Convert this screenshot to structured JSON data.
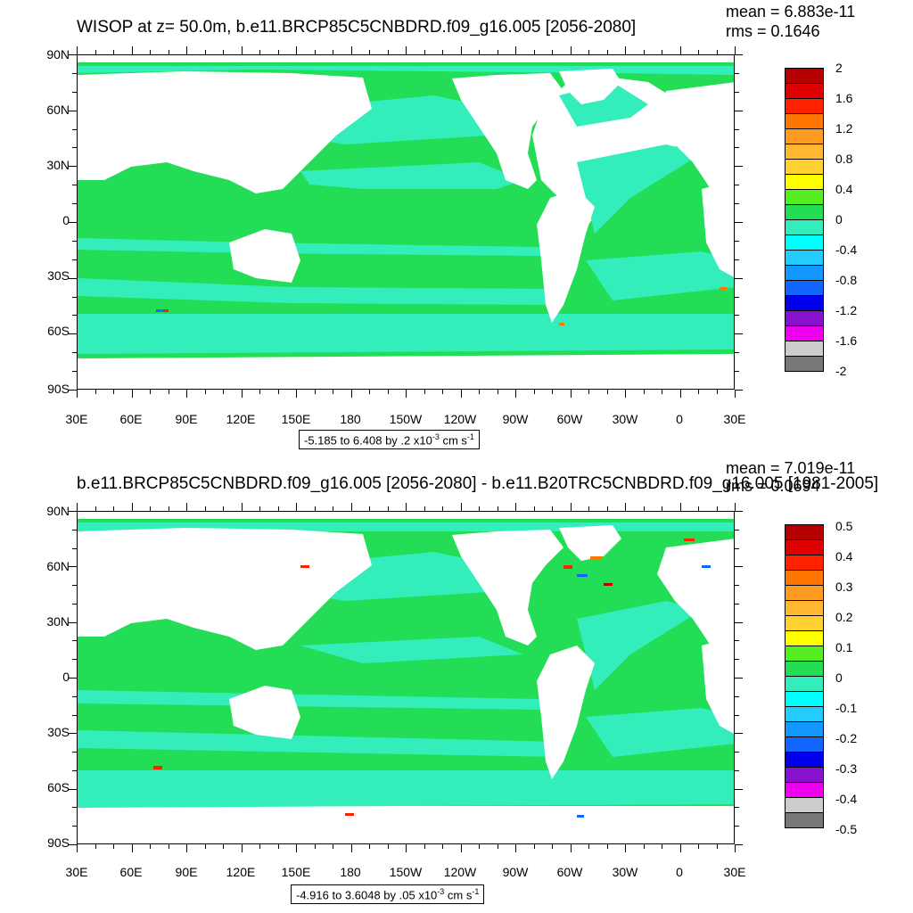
{
  "panels": [
    {
      "title": "WISOP at z=  50.0m, b.e11.BRCP85C5CNBDRD.f09_g16.005 [2056-2080]",
      "mean": "mean = 6.883e-11",
      "rms": "rms = 0.1646",
      "range_main": "-5.185 to 6.408 by .2 x10",
      "range_exp": "-3",
      "range_unit": " cm s",
      "range_unit_exp": "-1",
      "legend_labels": [
        "2",
        "1.6",
        "1.2",
        "0.8",
        "0.4",
        "0",
        "-0.4",
        "-0.8",
        "-1.2",
        "-1.6",
        "-2"
      ]
    },
    {
      "title": "b.e11.BRCP85C5CNBDRD.f09_g16.005 [2056-2080] - b.e11.B20TRC5CNBDRD.f09_g16.005 [1981-2005]",
      "mean": "mean = 7.019e-11",
      "rms": "rms = 0.0694",
      "range_main": "-4.916 to 3.6048 by .05 x10",
      "range_exp": "-3",
      "range_unit": " cm s",
      "range_unit_exp": "-1",
      "legend_labels": [
        "0.5",
        "0.4",
        "0.3",
        "0.2",
        "0.1",
        "0",
        "-0.1",
        "-0.2",
        "-0.3",
        "-0.4",
        "-0.5"
      ]
    }
  ],
  "lat_labels": [
    "90N",
    "60N",
    "30N",
    "0",
    "30S",
    "60S",
    "90S"
  ],
  "lon_labels": [
    "30E",
    "60E",
    "90E",
    "120E",
    "150E",
    "180",
    "150W",
    "120W",
    "90W",
    "60W",
    "30W",
    "0",
    "30E"
  ],
  "colorbar_colors": [
    "#b40000",
    "#e00000",
    "#ff2200",
    "#ff7700",
    "#ff9a22",
    "#ffb630",
    "#ffd030",
    "#ffff00",
    "#55ee22",
    "#22dd55",
    "#33eebb",
    "#00ffff",
    "#22ccff",
    "#1199ff",
    "#1166ff",
    "#0000ee",
    "#8811cc",
    "#ee00ee",
    "#cccccc",
    "#777777"
  ],
  "map_colors": {
    "ocean_base": "#22dd55",
    "ocean_alt": "#33eebb",
    "land": "#ffffff"
  }
}
